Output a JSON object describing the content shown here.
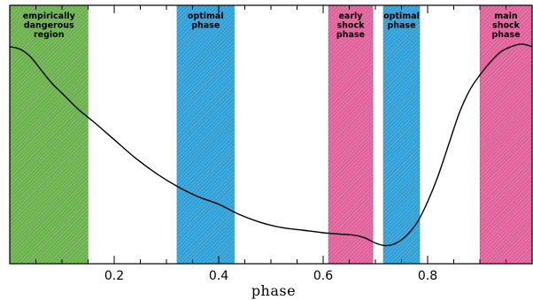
{
  "chart_data": {
    "type": "line",
    "title": "",
    "xlabel": "phase",
    "ylabel": "",
    "xlim": [
      0.0,
      1.0
    ],
    "ylim": [
      0.0,
      1.0
    ],
    "xticks": [
      0.2,
      0.4,
      0.6,
      0.8
    ],
    "xtick_labels": [
      "0.2",
      "0.4",
      "0.6",
      "0.8"
    ],
    "grid": false,
    "regions": [
      {
        "label_lines": [
          "empirically",
          "dangerous",
          "region"
        ],
        "x0": 0.0,
        "x1": 0.15,
        "color": "#6ab04c"
      },
      {
        "label_lines": [
          "optimal",
          "phase"
        ],
        "x0": 0.32,
        "x1": 0.43,
        "color": "#2e9fd6"
      },
      {
        "label_lines": [
          "early",
          "shock",
          "phase"
        ],
        "x0": 0.61,
        "x1": 0.695,
        "color": "#e0609a"
      },
      {
        "label_lines": [
          "optimal",
          "phase"
        ],
        "x0": 0.715,
        "x1": 0.785,
        "color": "#2e9fd6"
      },
      {
        "label_lines": [
          "main",
          "shock",
          "phase"
        ],
        "x0": 0.9,
        "x1": 1.0,
        "color": "#e0609a"
      }
    ],
    "series": [
      {
        "x": [
          0.0,
          0.02,
          0.04,
          0.06,
          0.08,
          0.1,
          0.13,
          0.16,
          0.2,
          0.24,
          0.28,
          0.32,
          0.36,
          0.4,
          0.44,
          0.48,
          0.52,
          0.56,
          0.6,
          0.63,
          0.66,
          0.68,
          0.7,
          0.72,
          0.74,
          0.76,
          0.78,
          0.8,
          0.82,
          0.84,
          0.86,
          0.88,
          0.9,
          0.92,
          0.94,
          0.96,
          0.98,
          1.0
        ],
        "y": [
          0.84,
          0.83,
          0.8,
          0.75,
          0.7,
          0.66,
          0.6,
          0.55,
          0.48,
          0.41,
          0.35,
          0.3,
          0.26,
          0.23,
          0.19,
          0.16,
          0.14,
          0.13,
          0.12,
          0.115,
          0.11,
          0.1,
          0.08,
          0.07,
          0.08,
          0.11,
          0.16,
          0.24,
          0.34,
          0.46,
          0.58,
          0.67,
          0.73,
          0.78,
          0.82,
          0.84,
          0.85,
          0.84
        ],
        "color": "#000000"
      }
    ]
  }
}
